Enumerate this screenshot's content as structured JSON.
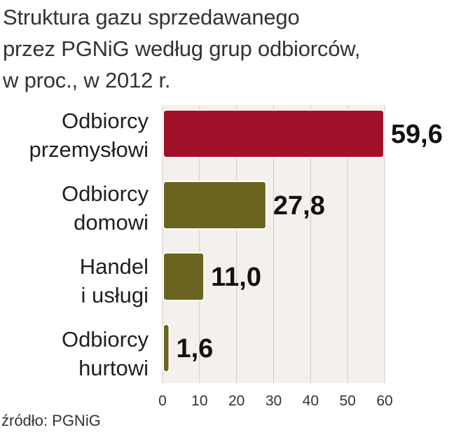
{
  "title_lines": [
    "Struktura gazu sprzedawanego",
    "przez PGNiG według grup odbiorców,",
    "w proc., w 2012 r."
  ],
  "source": "źródło: PGNiG",
  "colors": {
    "industrial": "#a01028",
    "olive": "#6b6420",
    "plot_bg": "#f4f1ec",
    "grid": "#cfcac2"
  },
  "chart_data": {
    "type": "bar",
    "orientation": "horizontal",
    "title": "Struktura gazu sprzedawanego przez PGNiG według grup odbiorców, w proc., w 2012 r.",
    "categories": [
      [
        "Odbiorcy",
        "przemysłowi"
      ],
      [
        "Odbiorcy",
        "domowi"
      ],
      [
        "Handel",
        "i usługi"
      ],
      [
        "Odbiorcy",
        "hurtowi"
      ]
    ],
    "values": [
      59.6,
      27.8,
      11.0,
      1.6
    ],
    "value_labels": [
      "59,6",
      "27,8",
      "11,0",
      "1,6"
    ],
    "bar_colors": [
      "#a01028",
      "#6b6420",
      "#6b6420",
      "#6b6420"
    ],
    "xlim": [
      0,
      60
    ],
    "xticks": [
      0,
      10,
      20,
      30,
      40,
      50,
      60
    ],
    "grid": true,
    "xlabel": "",
    "ylabel": ""
  }
}
